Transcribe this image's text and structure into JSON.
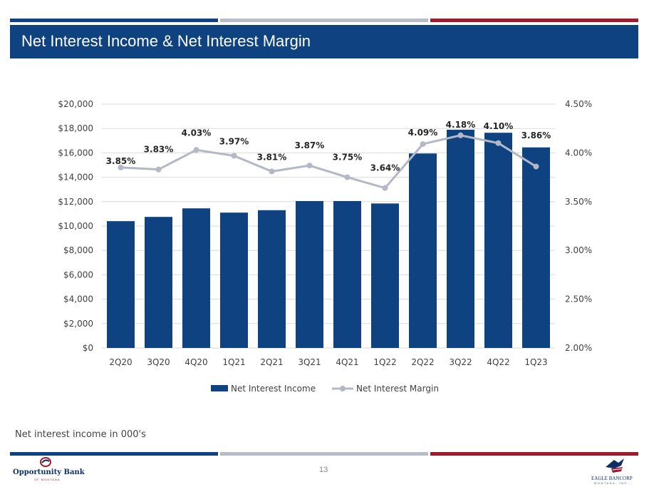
{
  "header": {
    "title": "Net Interest Income & Net Interest Margin"
  },
  "colors": {
    "navy": "#0e4281",
    "gray": "#b7bcc8",
    "red": "#a0192e",
    "line": "#b4b8c6"
  },
  "chart_data": {
    "type": "bar+line",
    "title": "",
    "categories": [
      "2Q20",
      "3Q20",
      "4Q20",
      "1Q21",
      "2Q21",
      "3Q21",
      "4Q21",
      "1Q22",
      "2Q22",
      "3Q22",
      "4Q22",
      "1Q23"
    ],
    "series": [
      {
        "name": "Net Interest Income",
        "type": "bar",
        "axis": "left",
        "values": [
          10400,
          10750,
          11450,
          11100,
          11300,
          12050,
          12050,
          11850,
          15950,
          17900,
          17650,
          16450
        ]
      },
      {
        "name": "Net Interest Margin",
        "type": "line",
        "axis": "right",
        "values": [
          3.85,
          3.83,
          4.03,
          3.97,
          3.81,
          3.87,
          3.75,
          3.64,
          4.09,
          4.18,
          4.1,
          3.86
        ],
        "labels": [
          "3.85%",
          "3.83%",
          "4.03%",
          "3.97%",
          "3.81%",
          "3.87%",
          "3.75%",
          "3.64%",
          "4.09%",
          "4.18%",
          "4.10%",
          "3.86%"
        ]
      }
    ],
    "y_left": {
      "min": 0,
      "max": 20000,
      "ticks": [
        "$0",
        "$2,000",
        "$4,000",
        "$6,000",
        "$8,000",
        "$10,000",
        "$12,000",
        "$14,000",
        "$16,000",
        "$18,000",
        "$20,000"
      ]
    },
    "y_right": {
      "min": 2.0,
      "max": 4.5,
      "ticks": [
        "2.00%",
        "2.50%",
        "3.00%",
        "3.50%",
        "4.00%",
        "4.50%"
      ]
    },
    "legend": [
      "Net Interest Income",
      "Net Interest Margin"
    ],
    "legend_position": "bottom"
  },
  "footer": {
    "note": "Net interest income in 000's",
    "page_number": "13",
    "logo_left": {
      "name": "Opportunity Bank",
      "sub": "OF MONTANA"
    },
    "logo_right": {
      "name": "EAGLE BANCORP",
      "sub": "MONTANA, INC."
    }
  }
}
